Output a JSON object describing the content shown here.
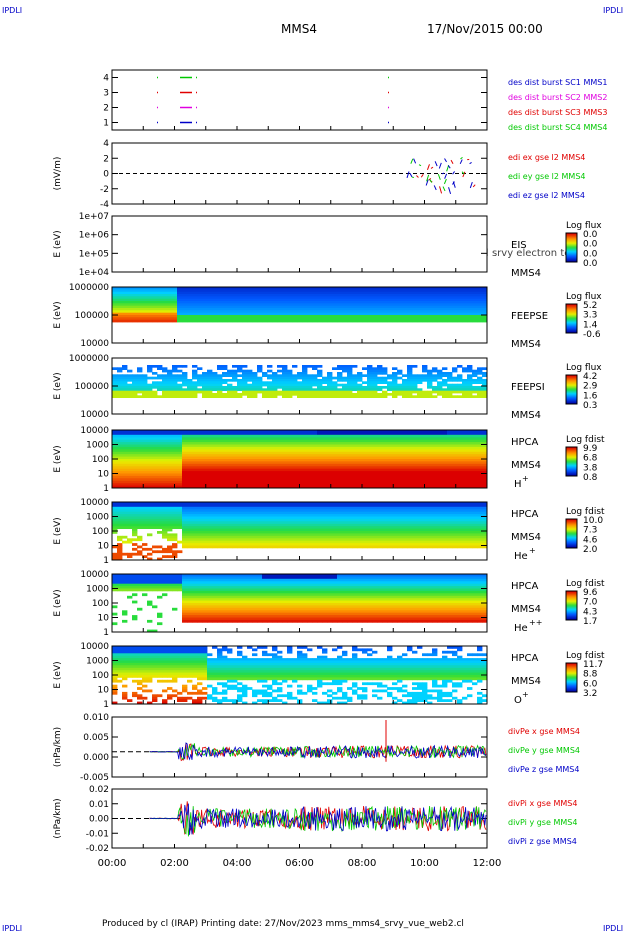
{
  "corner_left": "IPDLI",
  "corner_right": "IPDLI",
  "title": "MMS4",
  "date": "17/Nov/2015 00:00",
  "footer": "Produced by cl (IRAP)   Printing date: 27/Nov/2023   mms_mms4_srvy_vue_web2.cl",
  "colors": {
    "blue": "#0000c8",
    "magenta": "#e000e0",
    "red": "#e00000",
    "green": "#00c800"
  },
  "chart_data": {
    "type": "multi-panel time series",
    "x_ticks": [
      "00:00",
      "02:00",
      "04:00",
      "06:00",
      "08:00",
      "10:00",
      "12:00"
    ],
    "xlim": [
      "00:00",
      "12:00"
    ],
    "panels": [
      {
        "id": "burst",
        "type": "scatter",
        "yticks": [
          "4",
          "3",
          "2",
          "1"
        ],
        "legend": [
          {
            "label": "des dist burst SC1 MMS1",
            "color": "#0000c8"
          },
          {
            "label": "des dist burst SC2 MMS2",
            "color": "#e000e0"
          },
          {
            "label": "des dist burst SC3 MMS3",
            "color": "#e00000"
          },
          {
            "label": "des dist burst SC4 MMS4",
            "color": "#00c800"
          }
        ]
      },
      {
        "id": "edi",
        "type": "line",
        "ylabel": "(mV/m)",
        "yticks": [
          "4",
          "2",
          "0",
          "-2",
          "-4"
        ],
        "ylim": [
          -4,
          4
        ],
        "legend": [
          {
            "label": "edi ex gse l2 MMS4",
            "color": "#e00000"
          },
          {
            "label": "edi ey gse l2 MMS4",
            "color": "#00c800"
          },
          {
            "label": "edi ez gse l2 MMS4",
            "color": "#0000c8"
          }
        ]
      },
      {
        "id": "eis",
        "type": "heatmap",
        "ylabel": "E (eV)",
        "yticks": [
          "1e+07",
          "1e+06",
          "1e+05",
          "1e+04"
        ],
        "ylim": [
          10000,
          10000000
        ],
        "log_y": true,
        "instrument": "EIS",
        "overlay": "l srvy electron tof",
        "sc": "MMS4",
        "cbar_title": "Log flux",
        "cbar_ticks": [
          "0.0",
          "0.0",
          "0.0",
          "0.0"
        ]
      },
      {
        "id": "feeps_e",
        "type": "heatmap",
        "ylabel": "E (eV)",
        "yticks": [
          "1000000",
          "100000",
          "10000"
        ],
        "log_y": true,
        "instrument": "FEEPSE",
        "sc": "MMS4",
        "cbar_title": "Log flux",
        "cbar_ticks": [
          "5.2",
          "3.3",
          "1.4",
          "-0.6"
        ]
      },
      {
        "id": "feeps_i",
        "type": "heatmap",
        "ylabel": "E (eV)",
        "yticks": [
          "1000000",
          "100000",
          "10000"
        ],
        "log_y": true,
        "instrument": "FEEPSI",
        "sc": "MMS4",
        "cbar_title": "Log flux",
        "cbar_ticks": [
          "4.2",
          "2.9",
          "1.6",
          "0.3"
        ]
      },
      {
        "id": "hpca_h",
        "type": "heatmap",
        "ylabel": "E (eV)",
        "yticks": [
          "10000",
          "1000",
          "100",
          "10",
          "1"
        ],
        "log_y": true,
        "instrument": "HPCA",
        "sc": "MMS4",
        "species": "H",
        "charge": "+",
        "cbar_title": "Log fdist",
        "cbar_ticks": [
          "9.9",
          "6.8",
          "3.8",
          "0.8"
        ]
      },
      {
        "id": "hpca_he",
        "type": "heatmap",
        "ylabel": "E (eV)",
        "yticks": [
          "10000",
          "1000",
          "100",
          "10",
          "1"
        ],
        "log_y": true,
        "instrument": "HPCA",
        "sc": "MMS4",
        "species": "He",
        "charge": "+",
        "cbar_title": "Log fdist",
        "cbar_ticks": [
          "10.0",
          "7.3",
          "4.6",
          "2.0"
        ]
      },
      {
        "id": "hpca_hepp",
        "type": "heatmap",
        "ylabel": "E (eV)",
        "yticks": [
          "10000",
          "1000",
          "100",
          "10",
          "1"
        ],
        "log_y": true,
        "instrument": "HPCA",
        "sc": "MMS4",
        "species": "He",
        "charge": "++",
        "cbar_title": "Log fdist",
        "cbar_ticks": [
          "9.6",
          "7.0",
          "4.3",
          "1.7"
        ]
      },
      {
        "id": "hpca_o",
        "type": "heatmap",
        "ylabel": "E (eV)",
        "yticks": [
          "10000",
          "1000",
          "100",
          "10",
          "1"
        ],
        "log_y": true,
        "instrument": "HPCA",
        "sc": "MMS4",
        "species": "O",
        "charge": "+",
        "cbar_title": "Log fdist",
        "cbar_ticks": [
          "11.7",
          "8.8",
          "6.0",
          "3.2"
        ]
      },
      {
        "id": "divpe",
        "type": "line",
        "ylabel": "(nPa/km)",
        "yticks": [
          "0.010",
          "0.005",
          "0.000",
          "-0.005"
        ],
        "ylim": [
          -0.0075,
          0.0105
        ],
        "legend": [
          {
            "label": "divPe x gse MMS4",
            "color": "#e00000"
          },
          {
            "label": "divPe y gse MMS4",
            "color": "#00c800"
          },
          {
            "label": "divPe z gse MMS4",
            "color": "#0000c8"
          }
        ]
      },
      {
        "id": "divpi",
        "type": "line",
        "ylabel": "(nPa/km)",
        "yticks": [
          "0.02",
          "0.01",
          "0.00",
          "-0.01",
          "-0.02"
        ],
        "ylim": [
          -0.023,
          0.023
        ],
        "legend": [
          {
            "label": "divPi x gse MMS4",
            "color": "#e00000"
          },
          {
            "label": "divPi y gse MMS4",
            "color": "#00c800"
          },
          {
            "label": "divPi z gse MMS4",
            "color": "#0000c8"
          }
        ]
      }
    ]
  }
}
